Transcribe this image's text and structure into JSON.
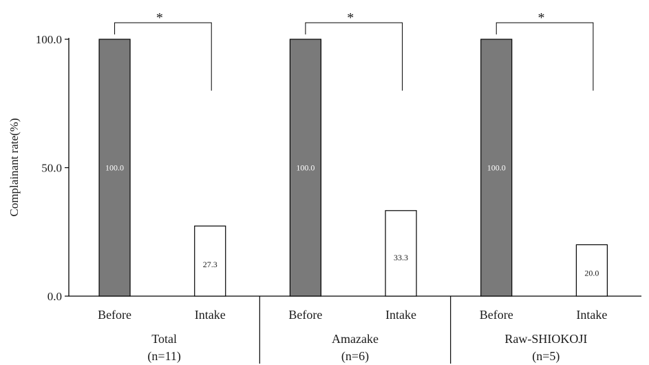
{
  "chart_data": {
    "type": "bar",
    "ylabel": "Complainant rate(%)",
    "ylim": [
      0,
      100
    ],
    "yticks": [
      "0.0",
      "50.0",
      "100.0"
    ],
    "ytick_values": [
      0,
      50,
      100
    ],
    "groups": [
      {
        "name": "Total",
        "n": "(n=11)",
        "categories": [
          "Before",
          "Intake"
        ],
        "values": [
          100.0,
          27.3
        ],
        "value_labels": [
          "100.0",
          "27.3"
        ],
        "significance": "*"
      },
      {
        "name": "Amazake",
        "n": "(n=6)",
        "categories": [
          "Before",
          "Intake"
        ],
        "values": [
          100.0,
          33.3
        ],
        "value_labels": [
          "100.0",
          "33.3"
        ],
        "significance": "*"
      },
      {
        "name": "Raw-SHIOKOJI",
        "n": "(n=5)",
        "categories": [
          "Before",
          "Intake"
        ],
        "values": [
          100.0,
          20.0
        ],
        "value_labels": [
          "100.0",
          "20.0"
        ],
        "significance": "*"
      }
    ],
    "colors": {
      "before": "#7a7a7a",
      "intake": "#ffffff",
      "outline": "#000000"
    }
  }
}
